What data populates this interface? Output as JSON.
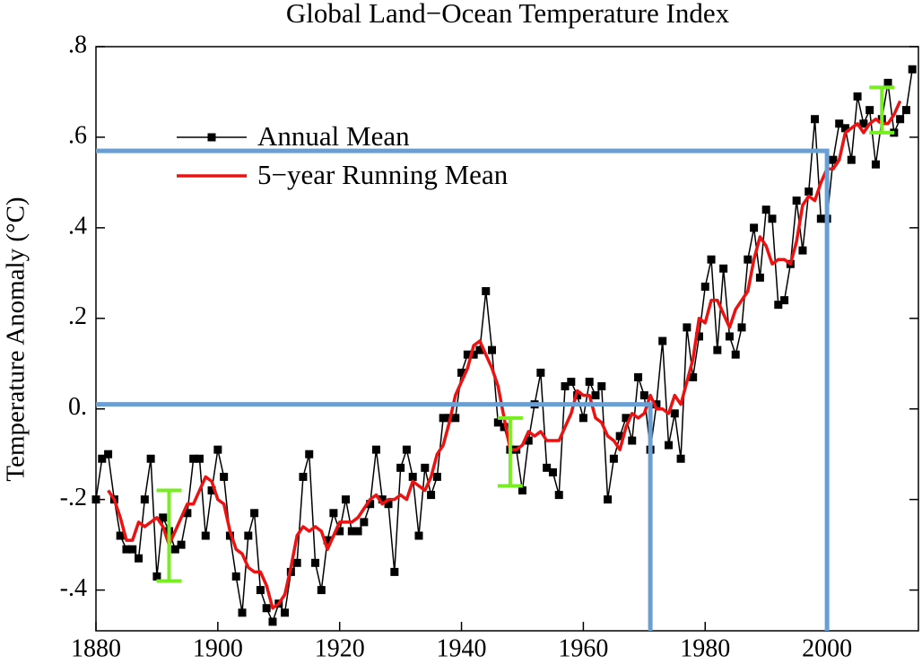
{
  "chart_data": {
    "type": "line",
    "title": "Global Land−Ocean Temperature Index",
    "ylabel": "Temperature Anomaly (°C)",
    "legend": "upper-left",
    "x": [
      1880,
      1881,
      1882,
      1883,
      1884,
      1885,
      1886,
      1887,
      1888,
      1889,
      1890,
      1891,
      1892,
      1893,
      1894,
      1895,
      1896,
      1897,
      1898,
      1899,
      1900,
      1901,
      1902,
      1903,
      1904,
      1905,
      1906,
      1907,
      1908,
      1909,
      1910,
      1911,
      1912,
      1913,
      1914,
      1915,
      1916,
      1917,
      1918,
      1919,
      1920,
      1921,
      1922,
      1923,
      1924,
      1925,
      1926,
      1927,
      1928,
      1929,
      1930,
      1931,
      1932,
      1933,
      1934,
      1935,
      1936,
      1937,
      1938,
      1939,
      1940,
      1941,
      1942,
      1943,
      1944,
      1945,
      1946,
      1947,
      1948,
      1949,
      1950,
      1951,
      1952,
      1953,
      1954,
      1955,
      1956,
      1957,
      1958,
      1959,
      1960,
      1961,
      1962,
      1963,
      1964,
      1965,
      1966,
      1967,
      1968,
      1969,
      1970,
      1971,
      1972,
      1973,
      1974,
      1975,
      1976,
      1977,
      1978,
      1979,
      1980,
      1981,
      1982,
      1983,
      1984,
      1985,
      1986,
      1987,
      1988,
      1989,
      1990,
      1991,
      1992,
      1993,
      1994,
      1995,
      1996,
      1997,
      1998,
      1999,
      2000,
      2001,
      2002,
      2003,
      2004,
      2005,
      2006,
      2007,
      2008,
      2009,
      2010,
      2011,
      2012,
      2013,
      2014
    ],
    "series": [
      {
        "name": "Annual Mean",
        "color": "#000000",
        "markers": true,
        "values": [
          -0.2,
          -0.11,
          -0.1,
          -0.2,
          -0.28,
          -0.31,
          -0.31,
          -0.33,
          -0.2,
          -0.11,
          -0.37,
          -0.24,
          -0.27,
          -0.31,
          -0.3,
          -0.23,
          -0.11,
          -0.11,
          -0.28,
          -0.18,
          -0.09,
          -0.15,
          -0.28,
          -0.37,
          -0.45,
          -0.28,
          -0.23,
          -0.4,
          -0.44,
          -0.47,
          -0.43,
          -0.45,
          -0.36,
          -0.34,
          -0.15,
          -0.1,
          -0.34,
          -0.4,
          -0.29,
          -0.23,
          -0.27,
          -0.2,
          -0.27,
          -0.27,
          -0.25,
          -0.21,
          -0.09,
          -0.2,
          -0.21,
          -0.36,
          -0.13,
          -0.09,
          -0.15,
          -0.28,
          -0.13,
          -0.19,
          -0.15,
          -0.02,
          -0.02,
          -0.02,
          0.08,
          0.12,
          0.12,
          0.13,
          0.26,
          0.13,
          -0.03,
          -0.04,
          -0.09,
          -0.09,
          -0.18,
          -0.07,
          0.01,
          0.08,
          -0.13,
          -0.14,
          -0.19,
          0.05,
          0.06,
          0.03,
          -0.02,
          0.06,
          0.03,
          0.05,
          -0.2,
          -0.11,
          -0.06,
          -0.02,
          -0.07,
          0.07,
          0.03,
          -0.09,
          0.01,
          0.15,
          -0.08,
          -0.01,
          -0.11,
          0.18,
          0.07,
          0.16,
          0.27,
          0.33,
          0.13,
          0.31,
          0.16,
          0.12,
          0.18,
          0.33,
          0.4,
          0.29,
          0.44,
          0.42,
          0.23,
          0.24,
          0.32,
          0.46,
          0.35,
          0.48,
          0.64,
          0.42,
          0.42,
          0.55,
          0.63,
          0.62,
          0.55,
          0.69,
          0.63,
          0.66,
          0.54,
          0.64,
          0.72,
          0.61,
          0.64,
          0.66,
          0.75
        ]
      },
      {
        "name": "5−year Running Mean",
        "color": "#ee1111",
        "markers": false,
        "values": [
          null,
          null,
          -0.18,
          -0.2,
          -0.24,
          -0.29,
          -0.29,
          -0.25,
          -0.26,
          -0.25,
          -0.24,
          -0.26,
          -0.3,
          -0.27,
          -0.24,
          -0.21,
          -0.21,
          -0.18,
          -0.15,
          -0.16,
          -0.2,
          -0.21,
          -0.27,
          -0.31,
          -0.32,
          -0.35,
          -0.36,
          -0.36,
          -0.39,
          -0.44,
          -0.43,
          -0.41,
          -0.35,
          -0.28,
          -0.26,
          -0.27,
          -0.26,
          -0.27,
          -0.31,
          -0.28,
          -0.25,
          -0.25,
          -0.25,
          -0.24,
          -0.22,
          -0.2,
          -0.19,
          -0.21,
          -0.2,
          -0.2,
          -0.19,
          -0.2,
          -0.16,
          -0.17,
          -0.18,
          -0.15,
          -0.1,
          -0.08,
          -0.03,
          0.03,
          0.06,
          0.09,
          0.14,
          0.15,
          0.12,
          0.09,
          0.05,
          -0.02,
          -0.09,
          -0.09,
          -0.08,
          -0.05,
          -0.06,
          -0.05,
          -0.07,
          -0.07,
          -0.07,
          -0.04,
          -0.01,
          0.04,
          0.03,
          0.03,
          -0.02,
          -0.03,
          -0.06,
          -0.07,
          -0.09,
          -0.04,
          -0.01,
          -0.02,
          -0.01,
          0.03,
          0.0,
          0.0,
          -0.01,
          0.03,
          0.01,
          0.06,
          0.11,
          0.2,
          0.19,
          0.24,
          0.24,
          0.21,
          0.18,
          0.22,
          0.24,
          0.26,
          0.33,
          0.38,
          0.36,
          0.32,
          0.33,
          0.33,
          0.32,
          0.37,
          0.45,
          0.47,
          0.46,
          0.5,
          0.53,
          0.53,
          0.55,
          0.61,
          0.62,
          0.63,
          0.61,
          0.63,
          0.64,
          0.63,
          0.63,
          0.65,
          0.68,
          null,
          null
        ]
      }
    ],
    "error_bars": {
      "color": "#77ee22",
      "bars": [
        {
          "x": 1892,
          "y": -0.28,
          "error": 0.1
        },
        {
          "x": 1948,
          "y": -0.095,
          "error": 0.075
        },
        {
          "x": 2009,
          "y": 0.66,
          "error": 0.05
        }
      ]
    },
    "reference_lines": {
      "color": "#6a9fd4",
      "lines": [
        {
          "x": 1971,
          "y": 0.01
        },
        {
          "x": 2000,
          "y": 0.57
        }
      ]
    },
    "xlim": [
      1880,
      2015
    ],
    "ylim": [
      -0.49,
      0.8
    ],
    "xticks": [
      1880,
      1900,
      1920,
      1940,
      1960,
      1980,
      2000
    ],
    "yticks": [
      {
        "value": -0.4,
        "label": "-.4"
      },
      {
        "value": -0.2,
        "label": "-.2"
      },
      {
        "value": 0,
        "label": "0."
      },
      {
        "value": 0.2,
        "label": ".2"
      },
      {
        "value": 0.4,
        "label": ".4"
      },
      {
        "value": 0.6,
        "label": ".6"
      },
      {
        "value": 0.8,
        "label": ".8"
      }
    ]
  }
}
